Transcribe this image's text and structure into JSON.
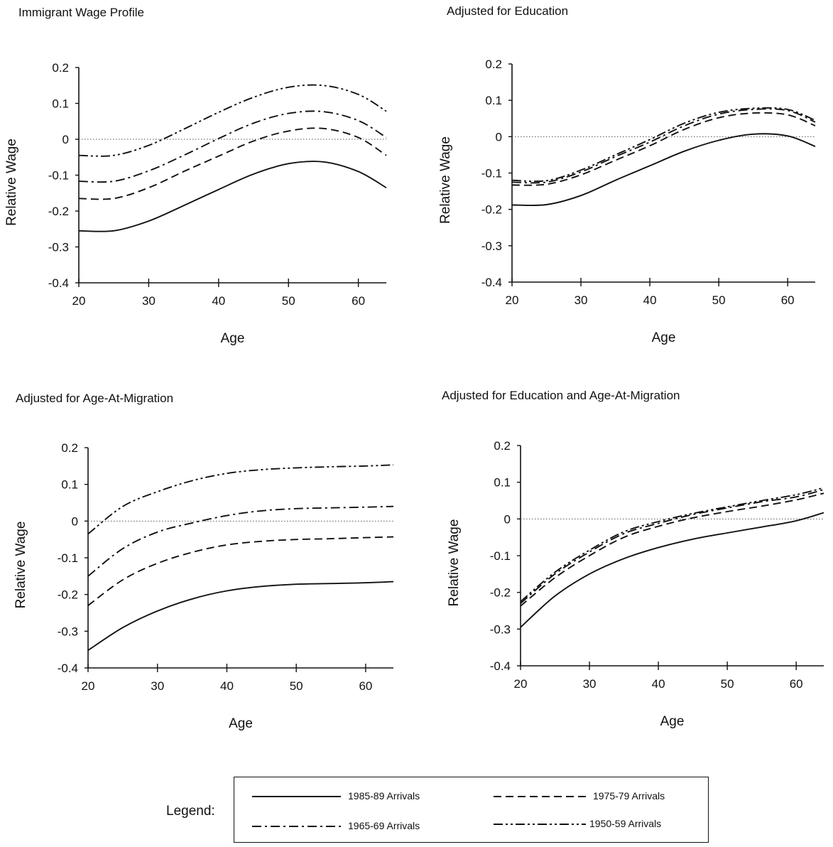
{
  "legend_label": "Legend:",
  "legend": [
    {
      "label": "1985-89 Arrivals",
      "style": "solid"
    },
    {
      "label": "1975-79 Arrivals",
      "style": "dashed"
    },
    {
      "label": "1965-69 Arrivals",
      "style": "dashdot"
    },
    {
      "label": "1950-59 Arrivals",
      "style": "dashdotdot"
    }
  ],
  "chart_data": [
    {
      "type": "line",
      "title": "Immigrant Wage Profile",
      "xlabel": "Age",
      "ylabel": "Relative Wage",
      "xlim": [
        20,
        64
      ],
      "ylim": [
        -0.4,
        0.2
      ],
      "xticks": [
        "20",
        "30",
        "40",
        "50",
        "60"
      ],
      "yticks": [
        "0.2",
        "0.1",
        "0",
        "-0.1",
        "-0.2",
        "-0.3",
        "-0.4"
      ],
      "zero_line": true,
      "x": [
        20,
        25,
        30,
        35,
        40,
        45,
        50,
        55,
        60,
        64
      ],
      "series": [
        {
          "name": "1985-89 Arrivals",
          "style": "solid",
          "values": [
            -0.255,
            -0.255,
            -0.228,
            -0.185,
            -0.14,
            -0.097,
            -0.068,
            -0.063,
            -0.09,
            -0.135
          ]
        },
        {
          "name": "1975-79 Arrivals",
          "style": "dashed",
          "values": [
            -0.165,
            -0.165,
            -0.135,
            -0.09,
            -0.047,
            -0.005,
            0.023,
            0.03,
            0.005,
            -0.045
          ]
        },
        {
          "name": "1965-69 Arrivals",
          "style": "dashdot",
          "values": [
            -0.117,
            -0.117,
            -0.088,
            -0.045,
            0.002,
            0.045,
            0.072,
            0.077,
            0.052,
            0.005
          ]
        },
        {
          "name": "1950-59 Arrivals",
          "style": "dashdotdot",
          "values": [
            -0.045,
            -0.045,
            -0.017,
            0.028,
            0.075,
            0.117,
            0.145,
            0.15,
            0.125,
            0.078
          ]
        }
      ]
    },
    {
      "type": "line",
      "title": "Adjusted for Education",
      "xlabel": "Age",
      "ylabel": "Relative Wage",
      "xlim": [
        20,
        64
      ],
      "ylim": [
        -0.4,
        0.2
      ],
      "xticks": [
        "20",
        "30",
        "40",
        "50",
        "60"
      ],
      "yticks": [
        "0.2",
        "0.1",
        "0",
        "-0.1",
        "-0.2",
        "-0.3",
        "-0.4"
      ],
      "zero_line": true,
      "x": [
        20,
        25,
        30,
        35,
        40,
        45,
        50,
        55,
        60,
        64
      ],
      "series": [
        {
          "name": "1985-89 Arrivals",
          "style": "solid",
          "values": [
            -0.188,
            -0.187,
            -0.162,
            -0.12,
            -0.08,
            -0.04,
            -0.01,
            0.007,
            0.002,
            -0.027
          ]
        },
        {
          "name": "1975-79 Arrivals",
          "style": "dashed",
          "values": [
            -0.133,
            -0.131,
            -0.105,
            -0.065,
            -0.025,
            0.02,
            0.052,
            0.065,
            0.06,
            0.03
          ]
        },
        {
          "name": "1965-69 Arrivals",
          "style": "dashdot",
          "values": [
            -0.125,
            -0.125,
            -0.097,
            -0.055,
            -0.015,
            0.03,
            0.062,
            0.075,
            0.072,
            0.04
          ]
        },
        {
          "name": "1950-59 Arrivals",
          "style": "dashdotdot",
          "values": [
            -0.12,
            -0.121,
            -0.092,
            -0.05,
            -0.008,
            0.037,
            0.067,
            0.078,
            0.075,
            0.045
          ]
        }
      ]
    },
    {
      "type": "line",
      "title": "Adjusted for Age-At-Migration",
      "xlabel": "Age",
      "ylabel": "Relative Wage",
      "xlim": [
        20,
        64
      ],
      "ylim": [
        -0.4,
        0.2
      ],
      "xticks": [
        "20",
        "30",
        "40",
        "50",
        "60"
      ],
      "yticks": [
        "0.2",
        "0.1",
        "0",
        "-0.1",
        "-0.2",
        "-0.3",
        "-0.4"
      ],
      "zero_line": true,
      "x": [
        20,
        25,
        30,
        35,
        40,
        45,
        50,
        55,
        60,
        64
      ],
      "series": [
        {
          "name": "1985-89 Arrivals",
          "style": "solid",
          "values": [
            -0.352,
            -0.29,
            -0.245,
            -0.212,
            -0.19,
            -0.178,
            -0.172,
            -0.17,
            -0.168,
            -0.165
          ]
        },
        {
          "name": "1975-79 Arrivals",
          "style": "dashed",
          "values": [
            -0.23,
            -0.16,
            -0.115,
            -0.085,
            -0.065,
            -0.055,
            -0.05,
            -0.048,
            -0.045,
            -0.043
          ]
        },
        {
          "name": "1965-69 Arrivals",
          "style": "dashdot",
          "values": [
            -0.15,
            -0.075,
            -0.03,
            -0.005,
            0.015,
            0.028,
            0.034,
            0.036,
            0.038,
            0.04
          ]
        },
        {
          "name": "1950-59 Arrivals",
          "style": "dashdotdot",
          "values": [
            -0.035,
            0.04,
            0.08,
            0.11,
            0.13,
            0.14,
            0.145,
            0.148,
            0.15,
            0.153
          ]
        }
      ]
    },
    {
      "type": "line",
      "title": "Adjusted for Education and Age-At-Migration",
      "xlabel": "Age",
      "ylabel": "Relative Wage",
      "xlim": [
        20,
        64
      ],
      "ylim": [
        -0.4,
        0.2
      ],
      "xticks": [
        "20",
        "30",
        "40",
        "50",
        "60"
      ],
      "yticks": [
        "0.2",
        "0.1",
        "0",
        "-0.1",
        "-0.2",
        "-0.3",
        "-0.4"
      ],
      "zero_line": true,
      "x": [
        20,
        25,
        30,
        35,
        40,
        45,
        50,
        55,
        60,
        64
      ],
      "series": [
        {
          "name": "1985-89 Arrivals",
          "style": "solid",
          "values": [
            -0.295,
            -0.21,
            -0.15,
            -0.108,
            -0.078,
            -0.055,
            -0.038,
            -0.022,
            -0.005,
            0.017
          ]
        },
        {
          "name": "1975-79 Arrivals",
          "style": "dashed",
          "values": [
            -0.237,
            -0.16,
            -0.1,
            -0.05,
            -0.02,
            0.003,
            0.02,
            0.035,
            0.052,
            0.07
          ]
        },
        {
          "name": "1965-69 Arrivals",
          "style": "dashdot",
          "values": [
            -0.23,
            -0.15,
            -0.09,
            -0.04,
            -0.012,
            0.012,
            0.03,
            0.047,
            0.06,
            0.08
          ]
        },
        {
          "name": "1950-59 Arrivals",
          "style": "dashdotdot",
          "values": [
            -0.225,
            -0.145,
            -0.085,
            -0.035,
            -0.007,
            0.015,
            0.033,
            0.05,
            0.066,
            0.085
          ]
        }
      ]
    }
  ]
}
